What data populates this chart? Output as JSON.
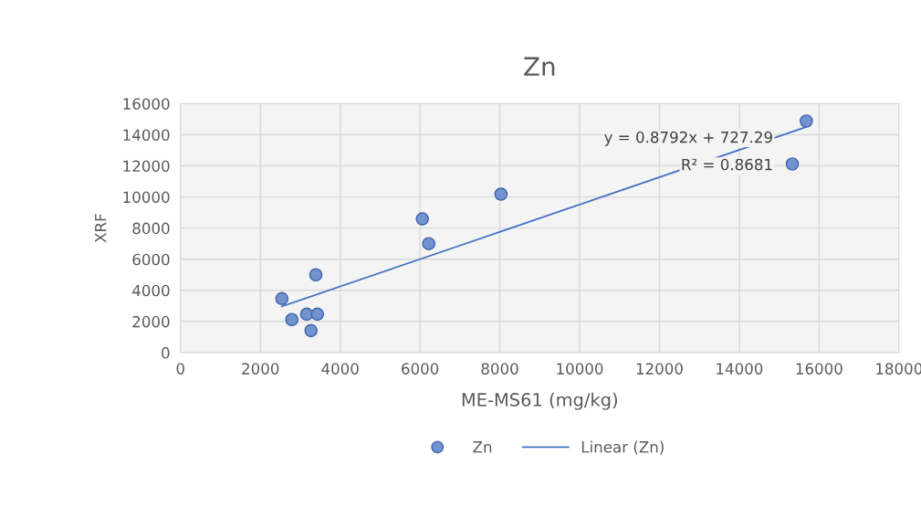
{
  "chart_data": {
    "type": "scatter",
    "title": "Zn",
    "xlabel": "ME-MS61 (mg/kg)",
    "ylabel": "XRF",
    "x": [
      2540,
      2790,
      3160,
      3270,
      3390,
      3430,
      6060,
      6220,
      8030,
      15330,
      15680
    ],
    "series": [
      {
        "name": "Zn",
        "marker": "circle",
        "color": "#7393cf",
        "values": [
          3470,
          2120,
          2470,
          1410,
          5000,
          2470,
          8590,
          7000,
          10180,
          12120,
          14880
        ]
      },
      {
        "name": "Linear (Zn)",
        "type": "line",
        "color": "#4472c4",
        "x": [
          2540,
          15680
        ],
        "values": [
          2960,
          14500
        ]
      }
    ],
    "annotations": [
      "y = 0.8792x + 727.29",
      "R² = 0.8681"
    ],
    "xlim": [
      0,
      18000
    ],
    "xticks": [
      0,
      2000,
      4000,
      6000,
      8000,
      10000,
      12000,
      14000,
      16000,
      18000
    ],
    "ylim": [
      0,
      16000
    ],
    "yticks": [
      0,
      2000,
      4000,
      6000,
      8000,
      10000,
      12000,
      14000,
      16000
    ],
    "grid": true,
    "legend": "bottom"
  }
}
